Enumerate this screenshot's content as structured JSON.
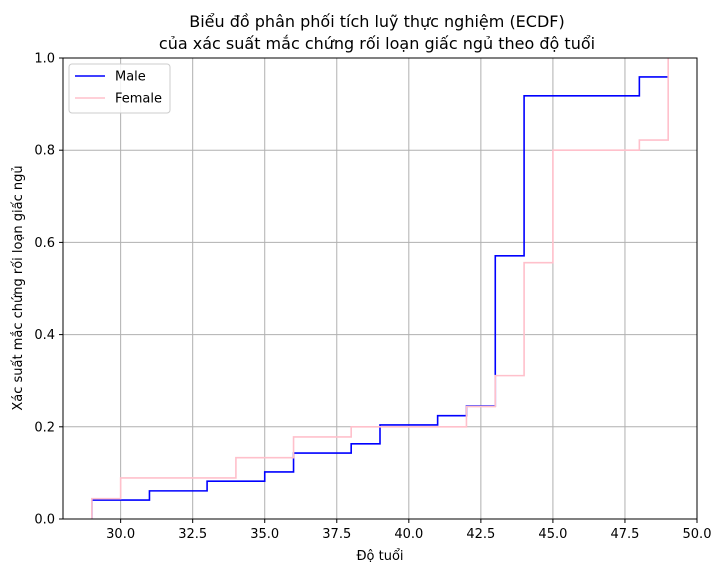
{
  "chart_data": {
    "type": "line",
    "step": "post",
    "title_line1": "Biểu đồ phân phối tích luỹ thực nghiệm (ECDF)",
    "title_line2": "của xác suất mắc chứng rối loạn giấc ngủ theo độ tuổi",
    "xlabel": "Độ tuổi",
    "ylabel": "Xác suất mắc chứng rối loạn giấc ngủ",
    "xlim": [
      28,
      50
    ],
    "ylim": [
      0,
      1
    ],
    "xticks": [
      30.0,
      32.5,
      35.0,
      37.5,
      40.0,
      42.5,
      45.0,
      47.5,
      50.0
    ],
    "xtick_labels": [
      "30.0",
      "32.5",
      "35.0",
      "37.5",
      "40.0",
      "42.5",
      "45.0",
      "47.5",
      "50.0"
    ],
    "yticks": [
      0.0,
      0.2,
      0.4,
      0.6,
      0.8,
      1.0
    ],
    "ytick_labels": [
      "0.0",
      "0.2",
      "0.4",
      "0.6",
      "0.8",
      "1.0"
    ],
    "grid": true,
    "legend_position": "upper-left",
    "series": [
      {
        "name": "Male",
        "color": "#0000ff",
        "x": [
          29,
          31,
          33,
          35,
          36,
          38,
          39,
          41,
          42,
          43,
          44,
          48,
          49
        ],
        "y": [
          0.041,
          0.061,
          0.082,
          0.102,
          0.143,
          0.163,
          0.204,
          0.224,
          0.245,
          0.571,
          0.918,
          0.959,
          0.959
        ]
      },
      {
        "name": "Female",
        "color": "#ffc0cb",
        "x": [
          29,
          30,
          34,
          36,
          38,
          42,
          43,
          44,
          45,
          48,
          49
        ],
        "y": [
          0.044,
          0.089,
          0.133,
          0.178,
          0.2,
          0.244,
          0.311,
          0.556,
          0.8,
          0.822,
          1.0
        ]
      }
    ]
  }
}
